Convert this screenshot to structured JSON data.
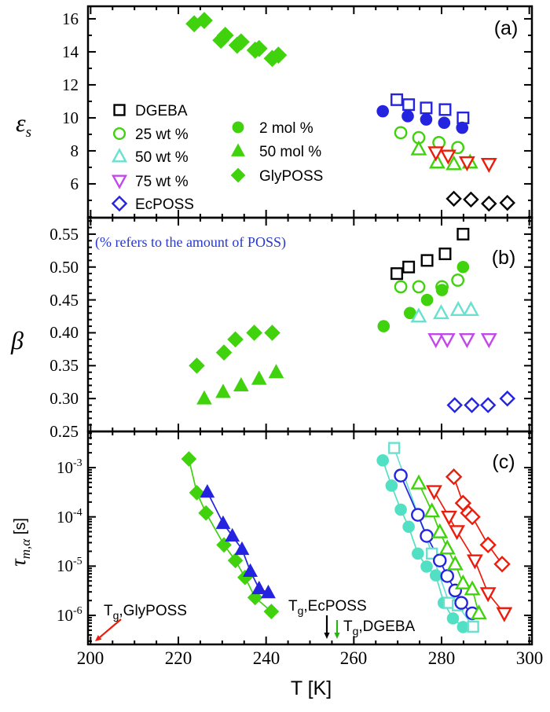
{
  "colors": {
    "blue": "#2424e0",
    "green": "#3fd20d",
    "cyan_fill": "#52e0c4",
    "cyan_open": "#6ae0cf",
    "magenta": "#c348ea",
    "red": "#ed1b0c",
    "black": "#000000",
    "note_blue": "#2638cf",
    "arrow_green": "#28b40e"
  },
  "figure": {
    "xlabel": "T [K]",
    "x_ticks": [
      "200",
      "220",
      "240",
      "260",
      "280",
      "300"
    ],
    "note": "(% refers to the amount of POSS)",
    "panels": [
      {
        "id": "a",
        "label": "(a)",
        "ylabel_main": "ε",
        "ylabel_sub": "s",
        "y_tick_labels": [
          "6",
          "8",
          "10",
          "12",
          "14",
          "16"
        ]
      },
      {
        "id": "b",
        "label": "(b)",
        "ylabel_main": "β",
        "ylabel_sub": "",
        "y_tick_labels": [
          "0.25",
          "0.30",
          "0.35",
          "0.40",
          "0.45",
          "0.50",
          "0.55"
        ]
      },
      {
        "id": "c",
        "label": "(c)",
        "ylabel_main": "τ",
        "ylabel_sub": "m,α",
        "ylabel_rest": " [s]",
        "y_ticks": [
          {
            "base": "10",
            "exp": "-3"
          },
          {
            "base": "10",
            "exp": "-4"
          },
          {
            "base": "10",
            "exp": "-5"
          },
          {
            "base": "10",
            "exp": "-6"
          }
        ]
      }
    ]
  },
  "legend": {
    "col1": [
      {
        "label": "DGEBA",
        "marker": "square",
        "filled": false,
        "color": "#000000"
      },
      {
        "label": "25 wt %",
        "marker": "circle",
        "filled": false,
        "color": "#3fd20d"
      },
      {
        "label": "50 wt %",
        "marker": "triangle-up",
        "filled": false,
        "color": "#6ae0cf"
      },
      {
        "label": "75 wt %",
        "marker": "triangle-down",
        "filled": false,
        "color": "#c348ea"
      },
      {
        "label": "EcPOSS",
        "marker": "diamond",
        "filled": false,
        "color": "#2424e0"
      }
    ],
    "col2": [
      {
        "label": "2 mol %",
        "marker": "circle",
        "filled": true,
        "color": "#3fd20d"
      },
      {
        "label": "50 mol %",
        "marker": "triangle-up",
        "filled": true,
        "color": "#3fd20d"
      },
      {
        "label": "GlyPOSS",
        "marker": "diamond",
        "filled": true,
        "color": "#3fd20d"
      }
    ]
  },
  "annotations": [
    {
      "id": "tg-glyposs",
      "prefix": "T",
      "sub": "g",
      "rest": ",GlyPOSS",
      "arrow_color": "#ed1b0c"
    },
    {
      "id": "tg-ecposs",
      "prefix": "T",
      "sub": "g",
      "rest": ",EcPOSS",
      "arrow_color": "#000000"
    },
    {
      "id": "tg-dgeba",
      "prefix": "T",
      "sub": "g",
      "rest": ",DGEBA",
      "arrow_color": "#28b40e"
    }
  ],
  "chart_data": [
    {
      "type": "scatter",
      "panel": "a",
      "title": "",
      "xlabel": "T [K]",
      "ylabel": "epsilon_s",
      "xlim": [
        200,
        300
      ],
      "ylim": [
        4.0,
        16.8
      ],
      "xticks": [
        200,
        220,
        240,
        260,
        280,
        300
      ],
      "yticks": [
        6,
        8,
        10,
        12,
        14,
        16
      ],
      "grid": false,
      "series": [
        {
          "name": "GlyPOSS",
          "marker": "diamond",
          "filled": true,
          "color": "#3fd20d",
          "scale": 1.12,
          "points": [
            [
              223.6,
              15.7
            ],
            [
              225.9,
              15.9
            ],
            [
              229.7,
              14.7
            ],
            [
              230.7,
              15.0
            ],
            [
              233.4,
              14.4
            ],
            [
              234.3,
              14.6
            ],
            [
              237.5,
              14.1
            ],
            [
              238.4,
              14.2
            ],
            [
              241.4,
              13.6
            ],
            [
              242.8,
              13.8
            ]
          ]
        },
        {
          "name": "DGEBA",
          "marker": "square",
          "filled": false,
          "color": "#2424e0",
          "scale": 1,
          "points": [
            [
              269.8,
              11.1
            ],
            [
              272.5,
              10.8
            ],
            [
              276.5,
              10.6
            ],
            [
              280.8,
              10.5
            ],
            [
              284.9,
              10.0
            ]
          ]
        },
        {
          "name": "2 mol %",
          "marker": "circle",
          "filled": true,
          "color": "#2424e0",
          "scale": 1,
          "points": [
            [
              266.6,
              10.4
            ],
            [
              272.3,
              10.1
            ],
            [
              276.5,
              9.9
            ],
            [
              280.6,
              9.7
            ],
            [
              284.7,
              9.4
            ]
          ]
        },
        {
          "name": "25 wt %",
          "marker": "circle",
          "filled": false,
          "color": "#3fd20d",
          "scale": 1,
          "points": [
            [
              270.7,
              9.1
            ],
            [
              274.8,
              8.8
            ],
            [
              279.4,
              8.5
            ],
            [
              283.7,
              8.2
            ]
          ]
        },
        {
          "name": "50 wt %",
          "marker": "triangle-up",
          "filled": false,
          "color": "#3fd20d",
          "scale": 1,
          "points": [
            [
              274.8,
              8.1
            ],
            [
              279.0,
              7.3
            ],
            [
              282.8,
              7.2
            ],
            [
              286.5,
              7.3
            ]
          ]
        },
        {
          "name": "75 wt %",
          "marker": "triangle-down",
          "filled": false,
          "color": "#ed1b0c",
          "scale": 1,
          "points": [
            [
              278.7,
              7.9
            ],
            [
              281.5,
              7.7
            ],
            [
              285.8,
              7.3
            ],
            [
              290.8,
              7.2
            ]
          ]
        },
        {
          "name": "EcPOSS",
          "marker": "diamond",
          "filled": false,
          "color": "#000000",
          "scale": 0.95,
          "points": [
            [
              282.8,
              5.1
            ],
            [
              286.7,
              5.05
            ],
            [
              290.8,
              4.8
            ],
            [
              295.0,
              4.85
            ]
          ]
        }
      ]
    },
    {
      "type": "scatter",
      "panel": "b",
      "title": "",
      "xlabel": "T [K]",
      "ylabel": "beta",
      "xlim": [
        200,
        300
      ],
      "ylim": [
        0.25,
        0.575
      ],
      "xticks": [
        200,
        220,
        240,
        260,
        280,
        300
      ],
      "yticks": [
        0.25,
        0.3,
        0.35,
        0.4,
        0.45,
        0.5,
        0.55
      ],
      "grid": false,
      "series": [
        {
          "name": "GlyPOSS",
          "marker": "diamond",
          "filled": true,
          "color": "#3fd20d",
          "scale": 1.05,
          "points": [
            [
              224.2,
              0.35
            ],
            [
              230.4,
              0.37
            ],
            [
              233.0,
              0.39
            ],
            [
              237.3,
              0.4
            ],
            [
              241.4,
              0.4
            ]
          ]
        },
        {
          "name": "50 mol %",
          "marker": "triangle-up",
          "filled": true,
          "color": "#3fd20d",
          "scale": 1.05,
          "points": [
            [
              225.9,
              0.3
            ],
            [
              230.2,
              0.31
            ],
            [
              234.3,
              0.32
            ],
            [
              238.4,
              0.33
            ],
            [
              242.3,
              0.34
            ]
          ]
        },
        {
          "name": "DGEBA",
          "marker": "square",
          "filled": false,
          "color": "#000000",
          "scale": 1,
          "points": [
            [
              269.8,
              0.49
            ],
            [
              272.5,
              0.5
            ],
            [
              276.7,
              0.51
            ],
            [
              280.8,
              0.52
            ],
            [
              284.9,
              0.55
            ]
          ]
        },
        {
          "name": "25 wt %",
          "marker": "circle",
          "filled": false,
          "color": "#3fd20d",
          "scale": 1,
          "points": [
            [
              270.7,
              0.47
            ],
            [
              274.8,
              0.47
            ],
            [
              280.1,
              0.47
            ],
            [
              283.7,
              0.48
            ]
          ]
        },
        {
          "name": "2 mol %",
          "marker": "circle",
          "filled": true,
          "color": "#3fd20d",
          "scale": 1,
          "points": [
            [
              266.8,
              0.41
            ],
            [
              272.8,
              0.43
            ],
            [
              276.7,
              0.45
            ],
            [
              280.1,
              0.465
            ],
            [
              284.9,
              0.5
            ]
          ]
        },
        {
          "name": "50 wt %",
          "marker": "triangle-up",
          "filled": false,
          "color": "#6ae0cf",
          "scale": 1,
          "points": [
            [
              274.8,
              0.425
            ],
            [
              279.9,
              0.43
            ],
            [
              283.8,
              0.435
            ],
            [
              286.7,
              0.435
            ]
          ]
        },
        {
          "name": "75 wt %",
          "marker": "triangle-down",
          "filled": false,
          "color": "#c348ea",
          "scale": 1,
          "points": [
            [
              278.7,
              0.39
            ],
            [
              281.3,
              0.39
            ],
            [
              285.8,
              0.39
            ],
            [
              290.8,
              0.39
            ]
          ]
        },
        {
          "name": "EcPOSS",
          "marker": "diamond",
          "filled": false,
          "color": "#2424e0",
          "scale": 0.95,
          "points": [
            [
              283.0,
              0.29
            ],
            [
              286.9,
              0.29
            ],
            [
              290.6,
              0.29
            ],
            [
              295.0,
              0.3
            ]
          ]
        }
      ]
    },
    {
      "type": "line",
      "panel": "c",
      "title": "",
      "xlabel": "T [K]",
      "ylabel": "tau_m,alpha [s]",
      "yscale": "log",
      "xlim": [
        200,
        300
      ],
      "ylim": [
        2.6e-07,
        0.0053
      ],
      "xticks": [
        200,
        220,
        240,
        260,
        280,
        300
      ],
      "yticks": [
        0.001,
        0.0001,
        1e-05,
        1e-06
      ],
      "grid": false,
      "series": [
        {
          "name": "GlyPOSS",
          "marker": "diamond",
          "filled": true,
          "color": "#3fd20d",
          "scale": 1,
          "line": true,
          "points": [
            [
              222.4,
              0.0015
            ],
            [
              224.2,
              0.00031
            ],
            [
              226.3,
              0.00012
            ],
            [
              230.4,
              2.7e-05
            ],
            [
              233.0,
              1.3e-05
            ],
            [
              235.2,
              5.9e-06
            ],
            [
              237.5,
              2.3e-06
            ],
            [
              241.2,
              1.2e-06
            ]
          ]
        },
        {
          "name": "50 mol %",
          "marker": "triangle-up",
          "filled": true,
          "color": "#2424e0",
          "scale": 1,
          "line": true,
          "points": [
            [
              226.6,
              0.00032
            ],
            [
              230.2,
              7.4e-05
            ],
            [
              232.3,
              4.1e-05
            ],
            [
              234.5,
              2.2e-05
            ],
            [
              236.4,
              7.9e-06
            ],
            [
              238.4,
              3.5e-06
            ],
            [
              240.5,
              2.9e-06
            ]
          ]
        },
        {
          "name": "2 mol %",
          "marker": "circle",
          "filled": true,
          "color": "#52e0c4",
          "scale": 1,
          "line": true,
          "points": [
            [
              266.6,
              0.0014
            ],
            [
              268.6,
              0.00043
            ],
            [
              270.7,
              0.00014
            ],
            [
              272.5,
              6.3e-05
            ],
            [
              274.6,
              1.8e-05
            ],
            [
              276.6,
              9.8e-06
            ],
            [
              278.7,
              6.5e-06
            ],
            [
              280.5,
              1.8e-06
            ],
            [
              282.6,
              8.7e-07
            ],
            [
              284.9,
              5.8e-07
            ]
          ]
        },
        {
          "name": "DGEBA",
          "marker": "square",
          "filled": false,
          "color": "#6ae0cf",
          "scale": 0.95,
          "line": true,
          "points": [
            [
              269.2,
              0.0025
            ],
            [
              277.8,
              1.8e-05
            ],
            [
              281.7,
              1.8e-06
            ],
            [
              283.7,
              1.6e-06
            ],
            [
              287.2,
              5.9e-07
            ]
          ]
        },
        {
          "name": "25 wt %",
          "marker": "circle",
          "filled": false,
          "color": "#2424e0",
          "scale": 1.05,
          "line": true,
          "points": [
            [
              270.7,
              0.00069
            ],
            [
              274.6,
              0.00011
            ],
            [
              276.6,
              4.1e-05
            ],
            [
              279.6,
              1.3e-05
            ],
            [
              281.3,
              6.3e-06
            ],
            [
              283.1,
              3.2e-06
            ],
            [
              284.5,
              1.8e-06
            ],
            [
              287.0,
              1.1e-06
            ]
          ]
        },
        {
          "name": "50 wt %",
          "marker": "triangle-up",
          "filled": false,
          "color": "#3fd20d",
          "scale": 1,
          "line": true,
          "points": [
            [
              274.8,
              0.00048
            ],
            [
              277.8,
              0.00013
            ],
            [
              279.6,
              4.9e-05
            ],
            [
              281.3,
              2.3e-05
            ],
            [
              283.1,
              1.1e-05
            ],
            [
              284.9,
              4.5e-06
            ],
            [
              287.0,
              3.4e-06
            ],
            [
              288.5,
              1.1e-06
            ]
          ]
        },
        {
          "name": "75 wt %",
          "marker": "triangle-down",
          "filled": false,
          "color": "#ed1b0c",
          "scale": 1,
          "line": true,
          "points": [
            [
              278.3,
              0.00033
            ],
            [
              281.7,
              0.0001
            ],
            [
              283.5,
              5.1e-05
            ],
            [
              287.6,
              1.3e-05
            ],
            [
              290.6,
              2.8e-06
            ],
            [
              294.3,
              1.1e-06
            ]
          ]
        },
        {
          "name": "EcPOSS",
          "marker": "diamond",
          "filled": false,
          "color": "#ed1b0c",
          "scale": 1,
          "line": true,
          "points": [
            [
              282.8,
              0.00065
            ],
            [
              284.9,
              0.00019
            ],
            [
              286.1,
              0.00012
            ],
            [
              287.0,
              0.0001
            ],
            [
              290.6,
              2.7e-05
            ],
            [
              293.8,
              1.1e-05
            ]
          ]
        }
      ]
    }
  ]
}
